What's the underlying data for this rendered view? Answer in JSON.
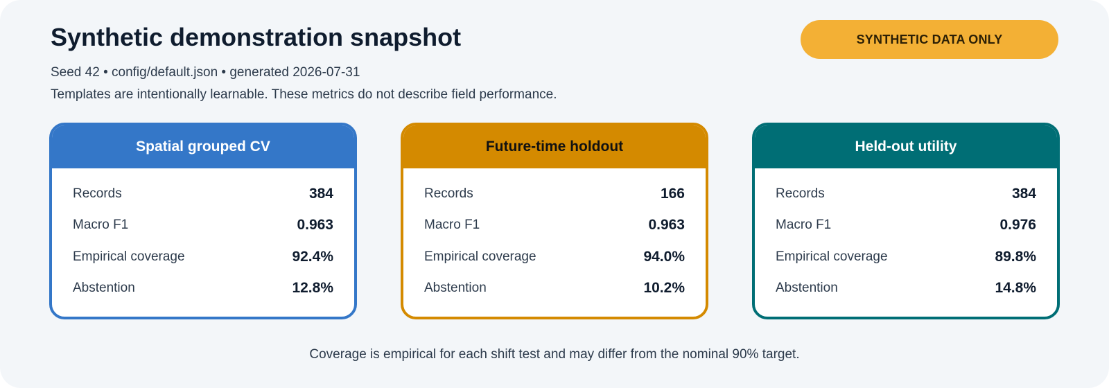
{
  "header": {
    "title": "Synthetic demonstration snapshot",
    "badge": "SYNTHETIC DATA ONLY",
    "meta_line": "Seed 42 • config/default.json • generated 2026-07-31",
    "disclaimer": "Templates are intentionally learnable. These metrics do not describe field performance."
  },
  "colors": {
    "background": "#f3f6f9",
    "badge": "#f3b035",
    "spatial": "#3477c8",
    "future": "#d48a00",
    "heldout": "#006e75",
    "text_dark": "#0f1c2e",
    "text_body": "#2c3a4b"
  },
  "cards": [
    {
      "title": "Spatial grouped CV",
      "color": "#3477c8",
      "title_color": "#ffffff",
      "metrics": [
        {
          "label": "Records",
          "value": "384"
        },
        {
          "label": "Macro F1",
          "value": "0.963"
        },
        {
          "label": "Empirical coverage",
          "value": "92.4%"
        },
        {
          "label": "Abstention",
          "value": "12.8%"
        }
      ]
    },
    {
      "title": "Future-time holdout",
      "color": "#d48a00",
      "title_color": "#111111",
      "metrics": [
        {
          "label": "Records",
          "value": "166"
        },
        {
          "label": "Macro F1",
          "value": "0.963"
        },
        {
          "label": "Empirical coverage",
          "value": "94.0%"
        },
        {
          "label": "Abstention",
          "value": "10.2%"
        }
      ]
    },
    {
      "title": "Held-out utility",
      "color": "#006e75",
      "title_color": "#ffffff",
      "metrics": [
        {
          "label": "Records",
          "value": "384"
        },
        {
          "label": "Macro F1",
          "value": "0.976"
        },
        {
          "label": "Empirical coverage",
          "value": "89.8%"
        },
        {
          "label": "Abstention",
          "value": "14.8%"
        }
      ]
    }
  ],
  "footer": {
    "note": "Coverage is empirical for each shift test and may differ from the nominal 90% target."
  }
}
